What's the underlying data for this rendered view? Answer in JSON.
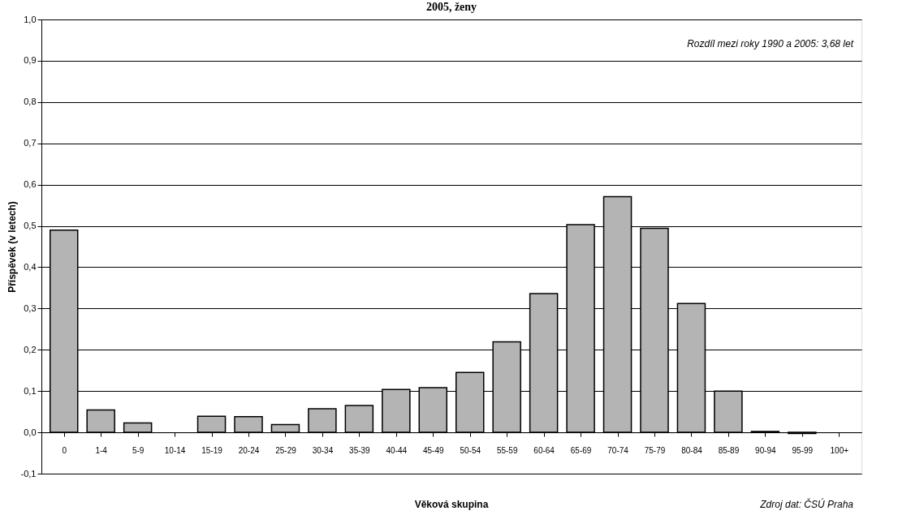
{
  "chart_data": {
    "type": "bar",
    "title": "2005, ženy",
    "xlabel": "Věková skupina",
    "ylabel": "Příspěvek (v letech)",
    "categories": [
      "0",
      "1-4",
      "5-9",
      "10-14",
      "15-19",
      "20-24",
      "25-29",
      "30-34",
      "35-39",
      "40-44",
      "45-49",
      "50-54",
      "55-59",
      "60-64",
      "65-69",
      "70-74",
      "75-79",
      "80-84",
      "85-89",
      "90-94",
      "95-99",
      "100+"
    ],
    "values": [
      0.49,
      0.054,
      0.023,
      0.0,
      0.039,
      0.038,
      0.019,
      0.057,
      0.065,
      0.104,
      0.108,
      0.145,
      0.219,
      0.336,
      0.503,
      0.571,
      0.494,
      0.312,
      0.1,
      0.002,
      -0.003,
      0.0
    ],
    "color": "#b4b4b4",
    "ylim": [
      -0.1,
      1.0
    ],
    "yticks": [
      {
        "value": -0.1,
        "label": "-0,1"
      },
      {
        "value": 0,
        "label": "0,0"
      },
      {
        "value": 0.1,
        "label": "0,1"
      },
      {
        "value": 0.2,
        "label": "0,2"
      },
      {
        "value": 0.3,
        "label": "0,3"
      },
      {
        "value": 0.4,
        "label": "0,4"
      },
      {
        "value": 0.5,
        "label": "0,5"
      },
      {
        "value": 0.6,
        "label": "0,6"
      },
      {
        "value": 0.7,
        "label": "0,7"
      },
      {
        "value": 0.8,
        "label": "0,8"
      },
      {
        "value": 0.9,
        "label": "0,9"
      },
      {
        "value": 1.0,
        "label": "1,0"
      }
    ],
    "grid": "y",
    "annotations": [
      "Rozdíl mezi roky 1990 a 2005: 3,68 let",
      "Zdroj dat: ČSÚ Praha"
    ]
  }
}
